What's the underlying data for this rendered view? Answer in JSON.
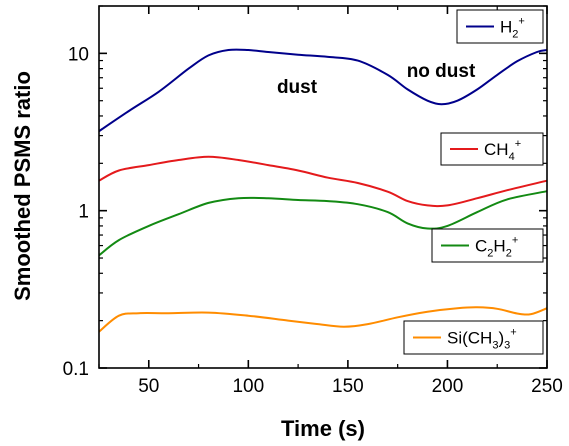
{
  "chart_data": {
    "type": "line",
    "xlabel": "Time (s)",
    "ylabel": "Smoothed PSMS ratio",
    "xlim": [
      25,
      250
    ],
    "ylim": [
      0.1,
      20
    ],
    "yscale": "log",
    "x_ticks": [
      50,
      100,
      150,
      200,
      250
    ],
    "x_tick_labels": [
      "50",
      "100",
      "150",
      "200",
      "250"
    ],
    "y_ticks": [
      0.1,
      1,
      10
    ],
    "y_tick_labels": [
      "0.1",
      "1",
      "10"
    ],
    "grid": false,
    "annotations": [
      {
        "text": "dust",
        "x": 120,
        "y": 7.3
      },
      {
        "text": "no dust",
        "x": 190,
        "y": 8.5
      }
    ],
    "series": [
      {
        "color": "#00008b",
        "legend": {
          "base": "H",
          "sub": "2",
          "sup": "+",
          "tail": ""
        },
        "x": [
          25,
          40,
          55,
          70,
          80,
          90,
          100,
          110,
          125,
          140,
          155,
          170,
          180,
          190,
          197,
          205,
          215,
          225,
          235,
          245,
          250
        ],
        "y": [
          3.2,
          4.3,
          5.7,
          8.0,
          9.7,
          10.5,
          10.5,
          10.2,
          9.8,
          9.5,
          9.0,
          7.3,
          5.9,
          5.0,
          4.75,
          5.0,
          5.9,
          7.3,
          8.9,
          10.2,
          10.5
        ]
      },
      {
        "color": "#e41a1c",
        "legend": {
          "base": "CH",
          "sub": "4",
          "sup": "+",
          "tail": ""
        },
        "x": [
          25,
          35,
          50,
          65,
          80,
          95,
          110,
          125,
          140,
          155,
          170,
          180,
          190,
          200,
          215,
          230,
          250
        ],
        "y": [
          1.55,
          1.8,
          1.95,
          2.1,
          2.2,
          2.1,
          1.95,
          1.8,
          1.62,
          1.5,
          1.32,
          1.15,
          1.08,
          1.08,
          1.2,
          1.35,
          1.55
        ]
      },
      {
        "color": "#138a13",
        "legend": {
          "base": "C",
          "sub": "2",
          "sup": "+",
          "tail": "H2"
        },
        "x": [
          25,
          35,
          50,
          65,
          80,
          95,
          110,
          125,
          140,
          155,
          170,
          180,
          190,
          200,
          215,
          230,
          250
        ],
        "y": [
          0.52,
          0.65,
          0.8,
          0.95,
          1.12,
          1.2,
          1.2,
          1.17,
          1.15,
          1.1,
          0.98,
          0.83,
          0.77,
          0.8,
          0.98,
          1.18,
          1.33
        ]
      },
      {
        "color": "#ff8c00",
        "legend": {
          "base": "Si(CH",
          "sub": "3",
          "sup": "+",
          "tail": ")3"
        },
        "x": [
          25,
          35,
          45,
          60,
          80,
          100,
          120,
          135,
          148,
          160,
          175,
          190,
          205,
          215,
          225,
          235,
          242,
          250
        ],
        "y": [
          0.17,
          0.215,
          0.223,
          0.223,
          0.225,
          0.215,
          0.2,
          0.19,
          0.183,
          0.19,
          0.21,
          0.228,
          0.24,
          0.243,
          0.238,
          0.222,
          0.22,
          0.24
        ]
      }
    ]
  }
}
